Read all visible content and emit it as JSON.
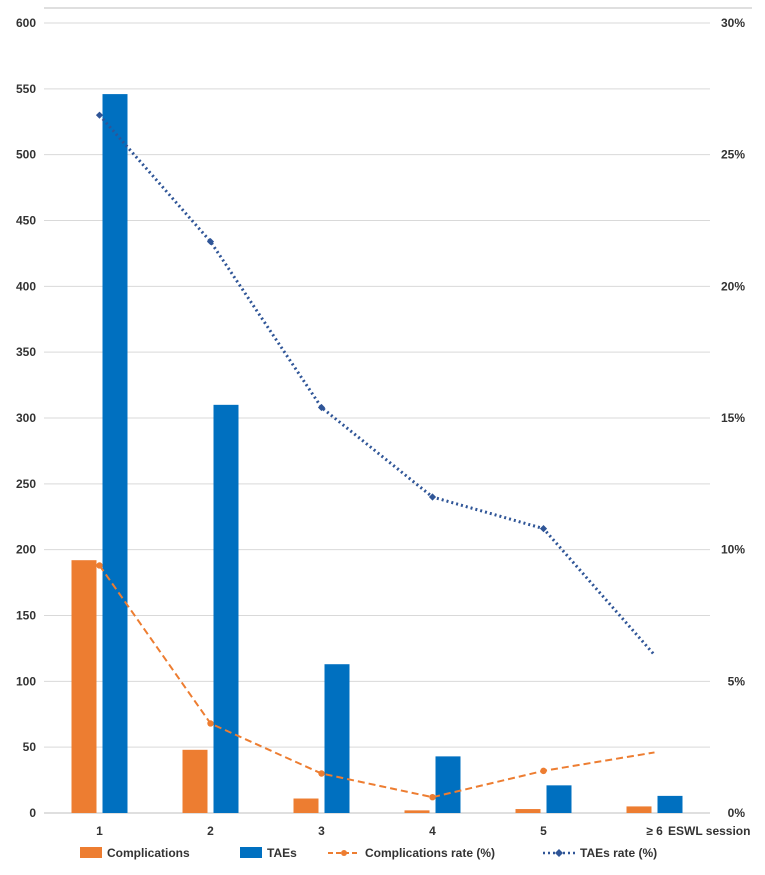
{
  "chart_data": {
    "type": "bar",
    "categories": [
      "1",
      "2",
      "3",
      "4",
      "5",
      "≥ 6"
    ],
    "xlabel": "ESWL session",
    "y_left": {
      "ticks": [
        "0",
        "50",
        "100",
        "150",
        "200",
        "250",
        "300",
        "350",
        "400",
        "450",
        "500",
        "550",
        "600"
      ],
      "range": [
        0,
        600
      ]
    },
    "y_right": {
      "ticks": [
        "0%",
        "5%",
        "10%",
        "15%",
        "20%",
        "25%",
        "30%"
      ],
      "range": [
        0,
        30
      ]
    },
    "series": [
      {
        "name": "Complications",
        "kind": "bar",
        "axis": "left",
        "color": "#ED7D31",
        "values": [
          192,
          48,
          11,
          2,
          3,
          5
        ]
      },
      {
        "name": "TAEs",
        "kind": "bar",
        "axis": "left",
        "color": "#0070C0",
        "values": [
          546,
          310,
          113,
          43,
          21,
          13
        ]
      },
      {
        "name": "Complications rate (%)",
        "kind": "line",
        "style": "dashed",
        "marker": "circle",
        "axis": "right",
        "color": "#ED7D31",
        "values": [
          9.4,
          3.4,
          1.5,
          0.6,
          1.6,
          2.3
        ]
      },
      {
        "name": "TAEs rate (%)",
        "kind": "line",
        "style": "dotted",
        "marker": "diamond",
        "axis": "right",
        "color": "#2F5597",
        "values": [
          26.5,
          21.7,
          15.4,
          12.0,
          10.8,
          6.0
        ]
      }
    ],
    "grid": true,
    "legend_position": "bottom"
  }
}
